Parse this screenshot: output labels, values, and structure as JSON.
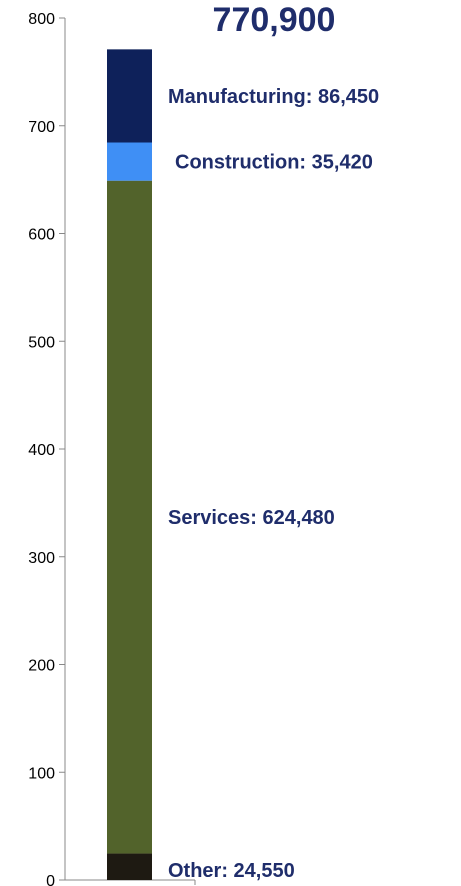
{
  "chart_data": {
    "type": "bar",
    "stacked": true,
    "categories": [
      ""
    ],
    "total_label": "770,900",
    "series": [
      {
        "name": "Other",
        "values": [
          24.55
        ],
        "label": "Other: 24,550",
        "color": "#1e1a12"
      },
      {
        "name": "Services",
        "values": [
          624.48
        ],
        "label": "Services: 624,480",
        "color": "#52632b"
      },
      {
        "name": "Construction",
        "values": [
          35.42
        ],
        "label": "Construction: 35,420",
        "color": "#3f8ff5"
      },
      {
        "name": "Manufacturing",
        "values": [
          86.45
        ],
        "label": "Manufacturing: 86,450",
        "color": "#0e215a"
      }
    ],
    "yticks": [
      "0",
      "100",
      "200",
      "300",
      "400",
      "500",
      "600",
      "700",
      "800"
    ],
    "ylim": [
      0,
      800
    ],
    "grid": false,
    "legend": "none",
    "label_color": "#1f2d6b"
  }
}
